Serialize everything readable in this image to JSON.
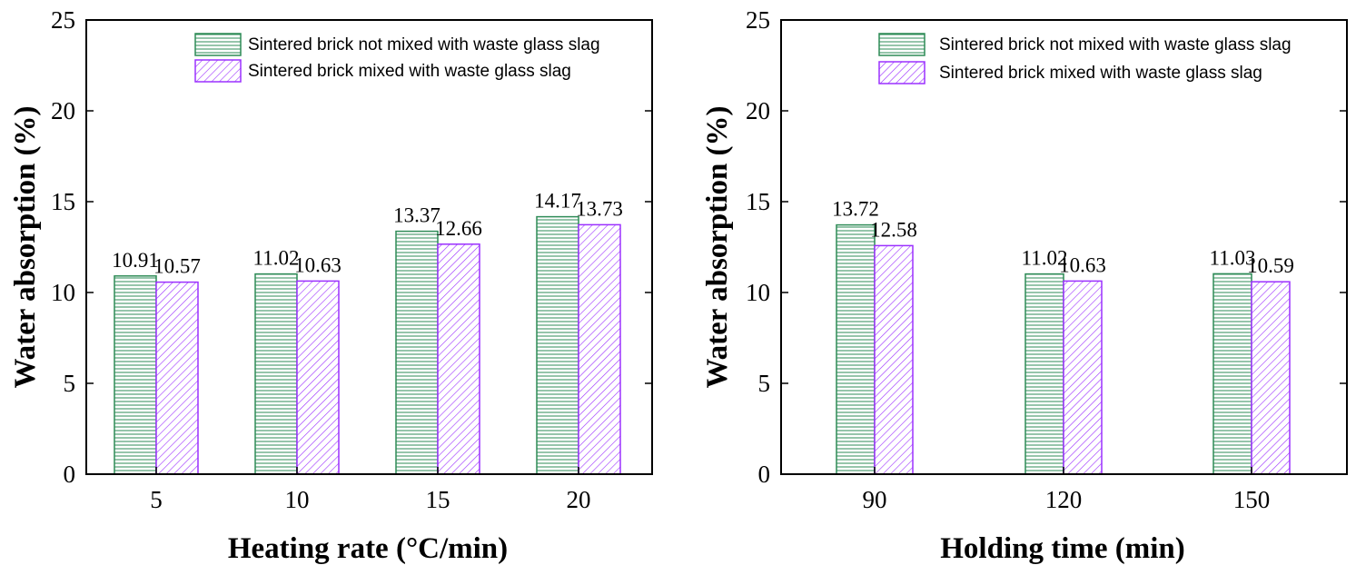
{
  "colors": {
    "series1": "#2e8b57",
    "series2": "#9b30ff",
    "axis": "#000000"
  },
  "chart_data": [
    {
      "type": "bar",
      "title": "",
      "xlabel": "Heating rate (°C/min)",
      "ylabel": "Water absorption (%)",
      "ylim": [
        0,
        25
      ],
      "yticks": [
        0,
        5,
        10,
        15,
        20,
        25
      ],
      "categories": [
        "5",
        "10",
        "15",
        "20"
      ],
      "legend_position": "top-right",
      "series": [
        {
          "name": "Sintered brick not mixed with waste glass slag",
          "pattern": "horizontal-lines",
          "values": [
            10.91,
            11.02,
            13.37,
            14.17
          ],
          "labels": [
            "10.91",
            "11.02",
            "13.37",
            "14.17"
          ]
        },
        {
          "name": "Sintered brick mixed with waste glass slag",
          "pattern": "diagonal-lines",
          "values": [
            10.57,
            10.63,
            12.66,
            13.73
          ],
          "labels": [
            "10.57",
            "10.63",
            "12.66",
            "13.73"
          ]
        }
      ]
    },
    {
      "type": "bar",
      "title": "",
      "xlabel": "Holding time (min)",
      "ylabel": "Water absorption (%)",
      "ylim": [
        0,
        25
      ],
      "yticks": [
        0,
        5,
        10,
        15,
        20,
        25
      ],
      "categories": [
        "90",
        "120",
        "150"
      ],
      "legend_position": "top-right",
      "series": [
        {
          "name": "Sintered brick not mixed with waste glass slag",
          "pattern": "horizontal-lines",
          "values": [
            13.72,
            11.02,
            11.03
          ],
          "labels": [
            "13.72",
            "11.02",
            "11.03"
          ]
        },
        {
          "name": "Sintered brick mixed with waste glass slag",
          "pattern": "diagonal-lines",
          "values": [
            12.58,
            10.63,
            10.59
          ],
          "labels": [
            "12.58",
            "10.63",
            "10.59"
          ]
        }
      ]
    }
  ]
}
